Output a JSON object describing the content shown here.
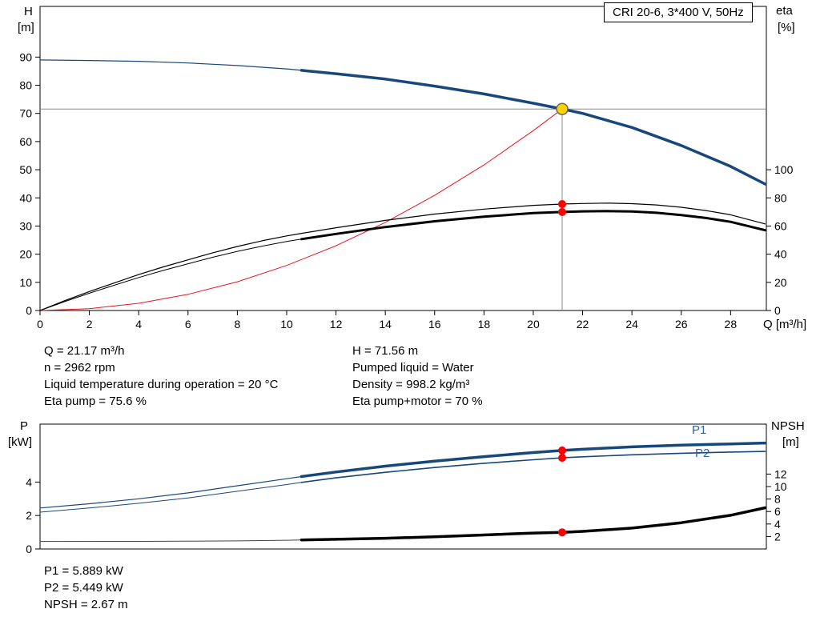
{
  "title_box": "CRI 20-6, 3*400 V, 50Hz",
  "colors": {
    "curve_blue": "#17477b",
    "label_blue": "#2a64ad",
    "curve_black": "#000000",
    "curve_gray_thin": "#444444",
    "curve_red": "#e8141e",
    "dot_red": "#ff0000",
    "duty_fill": "#ffd200",
    "duty_stroke": "#666666",
    "guide_gray": "#8c8c8c",
    "axis": "#000000"
  },
  "info": {
    "col1": [
      "Q = 21.17 m³/h",
      "n = 2962 rpm",
      "Liquid temperature during operation = 20 °C",
      "Eta pump = 75.6 %"
    ],
    "col2": [
      "H = 71.56 m",
      "Pumped liquid = Water",
      "Density = 998.2 kg/m³",
      "Eta pump+motor = 70 %"
    ],
    "footer": [
      "P1 = 5.889 kW",
      "P2 = 5.449 kW",
      "NPSH = 2.67 m"
    ]
  },
  "chart_data": [
    {
      "type": "line",
      "title": "CRI 20-6, 3*400 V, 50Hz",
      "x": {
        "label": "Q [m³/h]",
        "min": 0,
        "max": 29.45,
        "ticks": [
          0,
          2,
          4,
          6,
          8,
          10,
          12,
          14,
          16,
          18,
          20,
          22,
          24,
          26,
          28
        ]
      },
      "y_left": {
        "label": "H",
        "unit": "[m]",
        "min": 0,
        "max": 108,
        "ticks": [
          0,
          10,
          20,
          30,
          40,
          50,
          60,
          70,
          80,
          90
        ]
      },
      "y_right": {
        "label": "eta",
        "unit": "[%]",
        "min": 0,
        "max": 216,
        "ticks": [
          0,
          20,
          40,
          60,
          80,
          100
        ]
      },
      "guides": {
        "duty_q": 21.17,
        "duty_h": 71.56
      },
      "series": [
        {
          "name": "system-curve",
          "axis": "left",
          "color_key": "curve_red",
          "width": 1,
          "points": [
            [
              0,
              0
            ],
            [
              2,
              0.64
            ],
            [
              4,
              2.55
            ],
            [
              6,
              5.75
            ],
            [
              8,
              10.2
            ],
            [
              10,
              16.0
            ],
            [
              12,
              23.0
            ],
            [
              14,
              31.3
            ],
            [
              16,
              40.9
            ],
            [
              18,
              51.7
            ],
            [
              20,
              63.9
            ],
            [
              21.17,
              71.56
            ]
          ]
        },
        {
          "name": "head-curve-thin",
          "axis": "left",
          "color_key": "curve_blue",
          "width": 1.2,
          "points": [
            [
              0,
              89.0
            ],
            [
              2,
              88.8
            ],
            [
              4,
              88.5
            ],
            [
              6,
              87.9
            ],
            [
              8,
              87.0
            ],
            [
              10,
              85.8
            ],
            [
              10.6,
              85.3
            ]
          ]
        },
        {
          "name": "head-curve-thick",
          "axis": "left",
          "color_key": "curve_blue",
          "width": 3.5,
          "points": [
            [
              10.6,
              85.3
            ],
            [
              12,
              84.1
            ],
            [
              14,
              82.2
            ],
            [
              16,
              79.7
            ],
            [
              18,
              76.9
            ],
            [
              20,
              73.6
            ],
            [
              21.17,
              71.56
            ],
            [
              22,
              70.0
            ],
            [
              24,
              65.0
            ],
            [
              26,
              58.6
            ],
            [
              28,
              51.2
            ],
            [
              29.4,
              44.9
            ]
          ]
        },
        {
          "name": "eta-pump-curve",
          "axis": "right",
          "color_key": "curve_black",
          "width": 1.2,
          "points": [
            [
              0,
              0
            ],
            [
              1,
              7
            ],
            [
              2,
              13.5
            ],
            [
              3,
              19.5
            ],
            [
              4,
              25.5
            ],
            [
              5,
              31
            ],
            [
              6,
              36
            ],
            [
              7,
              41
            ],
            [
              8,
              45.5
            ],
            [
              9,
              49.5
            ],
            [
              10,
              53
            ],
            [
              10.6,
              54.8
            ],
            [
              12,
              58.8
            ],
            [
              14,
              64
            ],
            [
              16,
              68.5
            ],
            [
              18,
              72
            ],
            [
              20,
              74.7
            ],
            [
              21.17,
              75.6
            ],
            [
              22,
              76
            ],
            [
              23,
              76.3
            ],
            [
              24,
              75.9
            ],
            [
              25,
              75
            ],
            [
              26,
              73.3
            ],
            [
              27,
              71
            ],
            [
              28,
              68
            ],
            [
              29.4,
              61.5
            ]
          ]
        },
        {
          "name": "eta-pump-motor-thin",
          "axis": "right",
          "color_key": "curve_black",
          "width": 1,
          "points": [
            [
              0,
              0
            ],
            [
              1,
              6.3
            ],
            [
              2,
              12.3
            ],
            [
              3,
              17.9
            ],
            [
              4,
              23.4
            ],
            [
              5,
              28.5
            ],
            [
              6,
              33.2
            ],
            [
              7,
              37.8
            ],
            [
              8,
              42
            ],
            [
              9,
              45.7
            ],
            [
              10,
              49
            ],
            [
              10.6,
              50.7
            ]
          ]
        },
        {
          "name": "eta-pump-motor-thick",
          "axis": "right",
          "color_key": "curve_black",
          "width": 3,
          "points": [
            [
              10.6,
              50.7
            ],
            [
              12,
              54.4
            ],
            [
              14,
              59.3
            ],
            [
              16,
              63.4
            ],
            [
              18,
              66.7
            ],
            [
              20,
              69.2
            ],
            [
              21.17,
              70.0
            ],
            [
              22,
              70.4
            ],
            [
              23,
              70.6
            ],
            [
              24,
              70.3
            ],
            [
              25,
              69.4
            ],
            [
              26,
              67.8
            ],
            [
              27,
              65.7
            ],
            [
              28,
              63
            ],
            [
              29.4,
              57
            ]
          ]
        }
      ],
      "markers": [
        {
          "name": "eta-pump-dot",
          "q": 21.17,
          "v": 75.6,
          "axis": "right",
          "r": 5,
          "fill_key": "dot_red"
        },
        {
          "name": "eta-pump-motor-dot",
          "q": 21.17,
          "v": 70,
          "axis": "right",
          "r": 5,
          "fill_key": "dot_red"
        },
        {
          "name": "duty-point-marker",
          "q": 21.17,
          "v": 71.56,
          "axis": "left",
          "r": 7,
          "fill_key": "duty_fill",
          "stroke_key": "duty_stroke"
        }
      ]
    },
    {
      "type": "line",
      "x": {
        "label": "",
        "min": 0,
        "max": 29.45,
        "ticks": []
      },
      "y_left": {
        "label": "P",
        "unit": "[kW]",
        "min": 0,
        "max": 7.46,
        "ticks": [
          0,
          2,
          4
        ]
      },
      "y_right": {
        "label": "NPSH",
        "unit": "[m]",
        "min": 0,
        "max": 20,
        "ticks": [
          2,
          4,
          6,
          8,
          10,
          12
        ]
      },
      "p1_label": "P1",
      "p2_label": "P2",
      "series": [
        {
          "name": "p1-curve-thin",
          "axis": "left",
          "color_key": "curve_blue",
          "width": 1.2,
          "points": [
            [
              0,
              2.45
            ],
            [
              2,
              2.7
            ],
            [
              4,
              3.0
            ],
            [
              6,
              3.35
            ],
            [
              8,
              3.78
            ],
            [
              10,
              4.2
            ],
            [
              10.6,
              4.33
            ]
          ]
        },
        {
          "name": "p1-curve-thick",
          "axis": "left",
          "color_key": "curve_blue",
          "width": 3.5,
          "points": [
            [
              10.6,
              4.33
            ],
            [
              12,
              4.6
            ],
            [
              14,
              4.95
            ],
            [
              16,
              5.25
            ],
            [
              18,
              5.52
            ],
            [
              20,
              5.76
            ],
            [
              21.17,
              5.889
            ],
            [
              22,
              5.96
            ],
            [
              24,
              6.1
            ],
            [
              26,
              6.2
            ],
            [
              28,
              6.28
            ],
            [
              29.4,
              6.33
            ]
          ]
        },
        {
          "name": "p2-curve-thin",
          "axis": "left",
          "color_key": "curve_blue",
          "width": 1,
          "points": [
            [
              0,
              2.2
            ],
            [
              2,
              2.45
            ],
            [
              4,
              2.73
            ],
            [
              6,
              3.05
            ],
            [
              8,
              3.45
            ],
            [
              10,
              3.85
            ],
            [
              10.6,
              3.98
            ]
          ]
        },
        {
          "name": "p2-curve-thick",
          "axis": "left",
          "color_key": "curve_blue",
          "width": 1.6,
          "points": [
            [
              10.6,
              3.98
            ],
            [
              12,
              4.25
            ],
            [
              14,
              4.58
            ],
            [
              16,
              4.87
            ],
            [
              18,
              5.12
            ],
            [
              20,
              5.33
            ],
            [
              21.17,
              5.449
            ],
            [
              22,
              5.51
            ],
            [
              24,
              5.63
            ],
            [
              26,
              5.72
            ],
            [
              28,
              5.79
            ],
            [
              29.4,
              5.83
            ]
          ]
        },
        {
          "name": "npsh-curve-thin",
          "axis": "right",
          "color_key": "curve_gray_thin",
          "width": 1,
          "points": [
            [
              0,
              1.2
            ],
            [
              4,
              1.22
            ],
            [
              8,
              1.3
            ],
            [
              10,
              1.4
            ],
            [
              10.6,
              1.45
            ]
          ]
        },
        {
          "name": "npsh-curve-thick",
          "axis": "right",
          "color_key": "curve_black",
          "width": 3.5,
          "points": [
            [
              10.6,
              1.45
            ],
            [
              12,
              1.55
            ],
            [
              14,
              1.72
            ],
            [
              16,
              1.95
            ],
            [
              18,
              2.25
            ],
            [
              20,
              2.55
            ],
            [
              21.17,
              2.67
            ],
            [
              22,
              2.82
            ],
            [
              24,
              3.35
            ],
            [
              26,
              4.2
            ],
            [
              28,
              5.4
            ],
            [
              29.4,
              6.6
            ]
          ]
        }
      ],
      "markers": [
        {
          "name": "p1-dot",
          "q": 21.17,
          "v": 5.889,
          "axis": "left",
          "r": 5,
          "fill_key": "dot_red"
        },
        {
          "name": "p2-dot",
          "q": 21.17,
          "v": 5.449,
          "axis": "left",
          "r": 5,
          "fill_key": "dot_red"
        },
        {
          "name": "npsh-dot",
          "q": 21.17,
          "v": 2.67,
          "axis": "right",
          "r": 5,
          "fill_key": "dot_red"
        }
      ]
    }
  ]
}
